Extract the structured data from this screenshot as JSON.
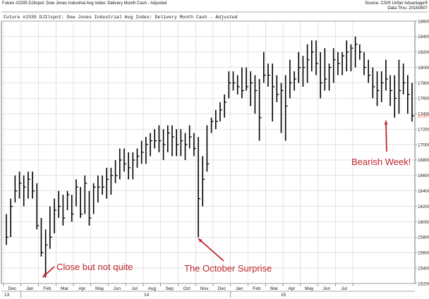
{
  "header": {
    "left": "Future #2335 DJIlspot: Dow Jones Industrial Avg Index: Delivery Month Cash - Adjusted",
    "right_line1": "Source: CSI® Unfair Advantage®",
    "right_line2": "Data Thru: 20150807"
  },
  "chart_data": {
    "type": "bar",
    "subtitle": "Future #2335 DJIlspot: Dow Jones Industrial Avg Index: Delivery Month Cash -  Adjusted",
    "ylim": [
      15200,
      18600
    ],
    "yticks": [
      15200,
      15400,
      15600,
      15800,
      16000,
      16200,
      16400,
      16600,
      16800,
      17000,
      17200,
      17400,
      17600,
      17800,
      18000,
      18200,
      18400,
      18600
    ],
    "last_value_label": "17374",
    "last_value_color": "#e0242b",
    "month_labels": [
      "Dec",
      "Jan",
      "Feb",
      "Mar",
      "Apr",
      "May",
      "Jun",
      "Jul",
      "Aug",
      "Sep",
      "Oct",
      "Nov",
      "Dec",
      "Jan",
      "Feb",
      "Mar",
      "Apr",
      "May",
      "Jun",
      "Jul"
    ],
    "year_labels": [
      "13",
      "14",
      "15"
    ],
    "grid": true,
    "bar_color": "#000000",
    "annotation_color": "#c0272d",
    "annotations": [
      {
        "text": "Close but not quite",
        "target_week": 8,
        "target_value": 15280
      },
      {
        "text": "The October Surprise",
        "target_week": 44,
        "target_value": 15800
      },
      {
        "text": "Bearish Week!",
        "target_week": 87,
        "target_value": 17310
      }
    ],
    "bars": [
      [
        15700,
        16100,
        15800
      ],
      [
        15800,
        16300,
        16200
      ],
      [
        16250,
        16600,
        16400
      ],
      [
        16300,
        16650,
        16500
      ],
      [
        16200,
        16600,
        16450
      ],
      [
        16300,
        16650,
        16550
      ],
      [
        16300,
        16650,
        16400
      ],
      [
        15900,
        16500,
        15950
      ],
      [
        15550,
        16050,
        15600
      ],
      [
        15280,
        15900,
        15700
      ],
      [
        15650,
        16200,
        15800
      ],
      [
        15850,
        16300,
        16150
      ],
      [
        16050,
        16400,
        16200
      ],
      [
        15950,
        16350,
        16050
      ],
      [
        16150,
        16400,
        16350
      ],
      [
        16000,
        16350,
        16100
      ],
      [
        16200,
        16550,
        16450
      ],
      [
        16050,
        16450,
        16100
      ],
      [
        16100,
        16600,
        16500
      ],
      [
        15950,
        16400,
        16050
      ],
      [
        16100,
        16500,
        16450
      ],
      [
        16250,
        16600,
        16450
      ],
      [
        16350,
        16600,
        16450
      ],
      [
        16300,
        16700,
        16550
      ],
      [
        16350,
        16700,
        16600
      ],
      [
        16500,
        16800,
        16600
      ],
      [
        16550,
        16950,
        16800
      ],
      [
        16650,
        16950,
        16750
      ],
      [
        16550,
        16900,
        16700
      ],
      [
        16550,
        16900,
        16800
      ],
      [
        16700,
        16950,
        16850
      ],
      [
        16750,
        17050,
        16900
      ],
      [
        16750,
        17100,
        17000
      ],
      [
        16850,
        17150,
        17050
      ],
      [
        16950,
        17200,
        17050
      ],
      [
        16900,
        17250,
        17050
      ],
      [
        16800,
        17200,
        17000
      ],
      [
        16900,
        17250,
        17150
      ],
      [
        16850,
        17250,
        17100
      ],
      [
        16850,
        17200,
        17000
      ],
      [
        16850,
        17200,
        17050
      ],
      [
        16800,
        17150,
        17000
      ],
      [
        16950,
        17250,
        17100
      ],
      [
        16850,
        17150,
        16950
      ],
      [
        15800,
        17100,
        16300
      ],
      [
        16200,
        16850,
        16550
      ],
      [
        16650,
        17250,
        16750
      ],
      [
        17150,
        17350,
        17300
      ],
      [
        17200,
        17450,
        17300
      ],
      [
        17300,
        17550,
        17450
      ],
      [
        17350,
        17650,
        17550
      ],
      [
        17600,
        17950,
        17800
      ],
      [
        17700,
        17950,
        17800
      ],
      [
        17650,
        17900,
        17750
      ],
      [
        17600,
        18000,
        17700
      ],
      [
        17700,
        18000,
        17750
      ],
      [
        17500,
        17950,
        17800
      ],
      [
        17400,
        17900,
        17700
      ],
      [
        17050,
        17850,
        17350
      ],
      [
        17800,
        18200,
        17900
      ],
      [
        17750,
        18050,
        17900
      ],
      [
        17300,
        18050,
        17750
      ],
      [
        17550,
        17900,
        17650
      ],
      [
        17150,
        17800,
        17700
      ],
      [
        17050,
        17900,
        17500
      ],
      [
        17600,
        18100,
        17800
      ],
      [
        17700,
        17950,
        17850
      ],
      [
        17800,
        18200,
        18000
      ],
      [
        17750,
        18150,
        18000
      ],
      [
        17800,
        18300,
        18100
      ],
      [
        17950,
        18350,
        18200
      ],
      [
        17900,
        18350,
        18050
      ],
      [
        17600,
        18200,
        17800
      ],
      [
        17700,
        18250,
        17850
      ],
      [
        17700,
        18050,
        18000
      ],
      [
        17800,
        18250,
        18100
      ],
      [
        17900,
        18200,
        18050
      ],
      [
        17900,
        18200,
        18150
      ],
      [
        17950,
        18350,
        18200
      ],
      [
        17950,
        18300,
        18250
      ],
      [
        18000,
        18400,
        18300
      ],
      [
        18100,
        18300,
        18200
      ],
      [
        17900,
        18200,
        18000
      ],
      [
        17800,
        18100,
        17900
      ],
      [
        17600,
        18000,
        17750
      ],
      [
        17500,
        17950,
        17700
      ],
      [
        17550,
        17950,
        17800
      ],
      [
        17700,
        18100,
        17850
      ],
      [
        17500,
        17900,
        17700
      ],
      [
        17350,
        17900,
        17600
      ],
      [
        17400,
        18100,
        17700
      ],
      [
        17650,
        18050,
        17800
      ],
      [
        17400,
        17900,
        17650
      ],
      [
        17300,
        17800,
        17374
      ]
    ]
  }
}
